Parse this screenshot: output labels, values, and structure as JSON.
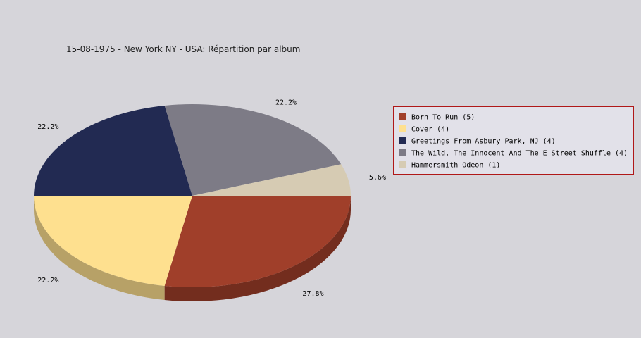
{
  "chart_data": {
    "type": "pie",
    "title": "15-08-1975 - New York NY - USA:  Répartition par album",
    "categories": [
      "Born To Run (5)",
      "Cover (4)",
      "Greetings From Asbury Park, NJ (4)",
      "The Wild, The Innocent And The E Street Shuffle (4)",
      "Hammersmith Odeon  (1)"
    ],
    "values": [
      27.8,
      22.2,
      22.2,
      22.2,
      5.6
    ],
    "value_labels": [
      "27.8%",
      "22.2%",
      "22.2%",
      "22.2%",
      "5.6%"
    ],
    "colors": [
      "#a03f2a",
      "#fee08f",
      "#222a52",
      "#7d7b86",
      "#d6cbb3"
    ],
    "legend": "right"
  }
}
